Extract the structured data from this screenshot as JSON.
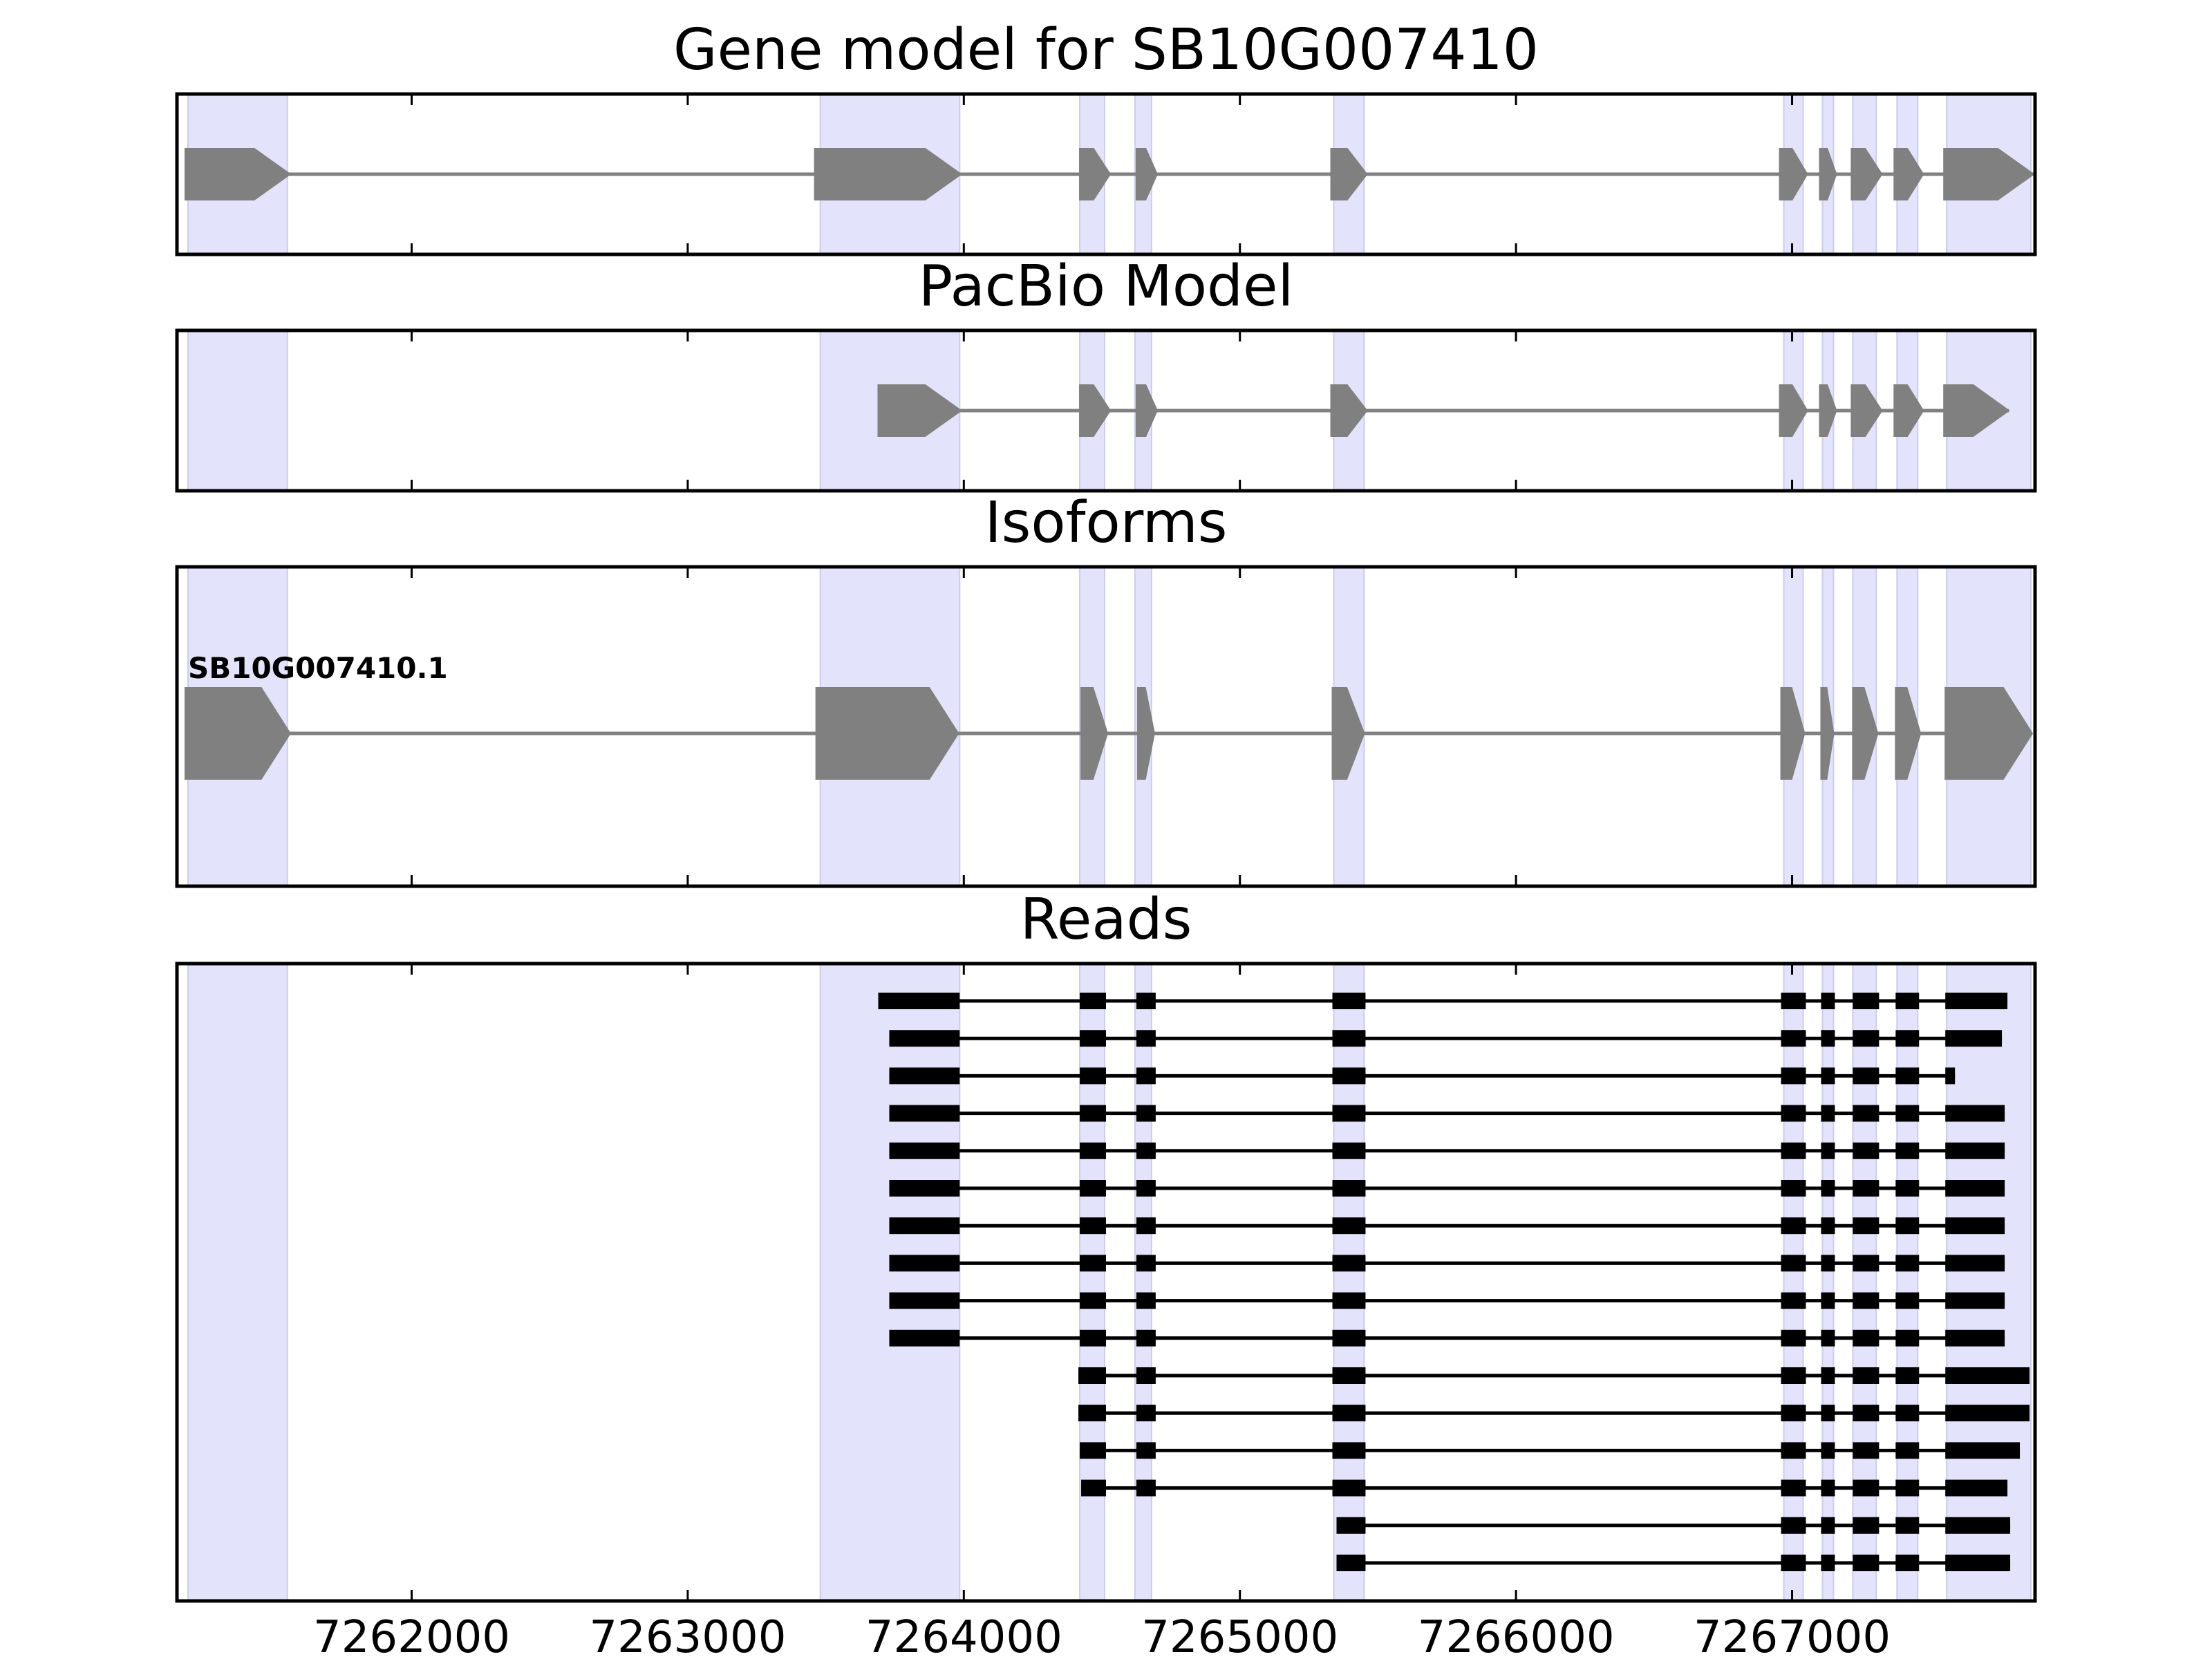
{
  "chart_data": {
    "type": "gene-model",
    "xlabel": "",
    "ylabel": "",
    "xlim": [
      7261150,
      7267880
    ],
    "xticks": [
      7262000,
      7263000,
      7264000,
      7265000,
      7266000,
      7267000
    ],
    "xtick_labels": [
      "7262000",
      "7263000",
      "7264000",
      "7265000",
      "7266000",
      "7267000"
    ],
    "strand": "+",
    "highlight_regions": [
      [
        7261190,
        7261550
      ],
      [
        7263480,
        7263985
      ],
      [
        7264420,
        7264510
      ],
      [
        7264620,
        7264680
      ],
      [
        7265340,
        7265450
      ],
      [
        7266970,
        7267040
      ],
      [
        7267110,
        7267150
      ],
      [
        7267220,
        7267305
      ],
      [
        7267380,
        7267455
      ],
      [
        7267560,
        7267865
      ]
    ],
    "panels": [
      {
        "id": "gene",
        "title": "Gene model for SB10G007410",
        "features": [
          {
            "exons": [
              [
                7261180,
                7261560
              ],
              [
                7263460,
                7263990
              ],
              [
                7264420,
                7264530
              ],
              [
                7264625,
                7264700
              ],
              [
                7265330,
                7265460
              ],
              [
                7266955,
                7267055
              ],
              [
                7267100,
                7267160
              ],
              [
                7267215,
                7267325
              ],
              [
                7267370,
                7267475
              ],
              [
                7267550,
                7267875
              ]
            ]
          }
        ]
      },
      {
        "id": "pacbio",
        "title": "PacBio Model",
        "features": [
          {
            "exons": [
              [
                7263690,
                7263990
              ],
              [
                7264420,
                7264530
              ],
              [
                7264625,
                7264700
              ],
              [
                7265330,
                7265460
              ],
              [
                7266955,
                7267055
              ],
              [
                7267100,
                7267160
              ],
              [
                7267215,
                7267325
              ],
              [
                7267370,
                7267475
              ],
              [
                7267550,
                7267785
              ]
            ]
          }
        ]
      },
      {
        "id": "isoforms",
        "title": "Isoforms",
        "features": [
          {
            "label": "SB10G007410.1",
            "exons": [
              [
                7261180,
                7261560
              ],
              [
                7263465,
                7263980
              ],
              [
                7264425,
                7264520
              ],
              [
                7264630,
                7264690
              ],
              [
                7265335,
                7265450
              ],
              [
                7266960,
                7267045
              ],
              [
                7267105,
                7267150
              ],
              [
                7267220,
                7267310
              ],
              [
                7267375,
                7267465
              ],
              [
                7267555,
                7267870
              ]
            ]
          }
        ]
      },
      {
        "id": "reads",
        "title": "Reads",
        "reads": [
          [
            [
              7263690,
              7263985
            ],
            [
              7264420,
              7264515
            ],
            [
              7264625,
              7264695
            ],
            [
              7265335,
              7265455
            ],
            [
              7266960,
              7267050
            ],
            [
              7267105,
              7267155
            ],
            [
              7267220,
              7267315
            ],
            [
              7267375,
              7267460
            ],
            [
              7267555,
              7267780
            ]
          ],
          [
            [
              7263730,
              7263985
            ],
            [
              7264420,
              7264515
            ],
            [
              7264625,
              7264695
            ],
            [
              7265335,
              7265455
            ],
            [
              7266960,
              7267050
            ],
            [
              7267105,
              7267155
            ],
            [
              7267220,
              7267315
            ],
            [
              7267375,
              7267460
            ],
            [
              7267555,
              7267760
            ]
          ],
          [
            [
              7263730,
              7263985
            ],
            [
              7264420,
              7264515
            ],
            [
              7264625,
              7264695
            ],
            [
              7265335,
              7265455
            ],
            [
              7266960,
              7267050
            ],
            [
              7267105,
              7267155
            ],
            [
              7267220,
              7267315
            ],
            [
              7267375,
              7267460
            ],
            [
              7267555,
              7267590
            ]
          ],
          [
            [
              7263730,
              7263985
            ],
            [
              7264420,
              7264515
            ],
            [
              7264625,
              7264695
            ],
            [
              7265335,
              7265455
            ],
            [
              7266960,
              7267050
            ],
            [
              7267105,
              7267155
            ],
            [
              7267220,
              7267315
            ],
            [
              7267375,
              7267460
            ],
            [
              7267555,
              7267770
            ]
          ],
          [
            [
              7263730,
              7263985
            ],
            [
              7264420,
              7264515
            ],
            [
              7264625,
              7264695
            ],
            [
              7265335,
              7265455
            ],
            [
              7266960,
              7267050
            ],
            [
              7267105,
              7267155
            ],
            [
              7267220,
              7267315
            ],
            [
              7267375,
              7267460
            ],
            [
              7267555,
              7267770
            ]
          ],
          [
            [
              7263730,
              7263985
            ],
            [
              7264420,
              7264515
            ],
            [
              7264625,
              7264695
            ],
            [
              7265335,
              7265455
            ],
            [
              7266960,
              7267050
            ],
            [
              7267105,
              7267155
            ],
            [
              7267220,
              7267315
            ],
            [
              7267375,
              7267460
            ],
            [
              7267555,
              7267770
            ]
          ],
          [
            [
              7263730,
              7263985
            ],
            [
              7264420,
              7264515
            ],
            [
              7264625,
              7264695
            ],
            [
              7265335,
              7265455
            ],
            [
              7266960,
              7267050
            ],
            [
              7267105,
              7267155
            ],
            [
              7267220,
              7267315
            ],
            [
              7267375,
              7267460
            ],
            [
              7267555,
              7267770
            ]
          ],
          [
            [
              7263730,
              7263985
            ],
            [
              7264420,
              7264515
            ],
            [
              7264625,
              7264695
            ],
            [
              7265335,
              7265455
            ],
            [
              7266960,
              7267050
            ],
            [
              7267105,
              7267155
            ],
            [
              7267220,
              7267315
            ],
            [
              7267375,
              7267460
            ],
            [
              7267555,
              7267770
            ]
          ],
          [
            [
              7263730,
              7263985
            ],
            [
              7264420,
              7264515
            ],
            [
              7264625,
              7264695
            ],
            [
              7265335,
              7265455
            ],
            [
              7266960,
              7267050
            ],
            [
              7267105,
              7267155
            ],
            [
              7267220,
              7267315
            ],
            [
              7267375,
              7267460
            ],
            [
              7267555,
              7267770
            ]
          ],
          [
            [
              7263730,
              7263985
            ],
            [
              7264420,
              7264515
            ],
            [
              7264625,
              7264695
            ],
            [
              7265335,
              7265455
            ],
            [
              7266960,
              7267050
            ],
            [
              7267105,
              7267155
            ],
            [
              7267220,
              7267315
            ],
            [
              7267375,
              7267460
            ],
            [
              7267555,
              7267770
            ]
          ],
          [
            [
              7264415,
              7264515
            ],
            [
              7264625,
              7264695
            ],
            [
              7265335,
              7265455
            ],
            [
              7266960,
              7267050
            ],
            [
              7267105,
              7267155
            ],
            [
              7267220,
              7267315
            ],
            [
              7267375,
              7267460
            ],
            [
              7267555,
              7267860
            ]
          ],
          [
            [
              7264415,
              7264515
            ],
            [
              7264625,
              7264695
            ],
            [
              7265335,
              7265455
            ],
            [
              7266960,
              7267050
            ],
            [
              7267105,
              7267155
            ],
            [
              7267220,
              7267315
            ],
            [
              7267375,
              7267460
            ],
            [
              7267555,
              7267860
            ]
          ],
          [
            [
              7264420,
              7264515
            ],
            [
              7264625,
              7264695
            ],
            [
              7265335,
              7265455
            ],
            [
              7266960,
              7267050
            ],
            [
              7267105,
              7267155
            ],
            [
              7267220,
              7267315
            ],
            [
              7267375,
              7267460
            ],
            [
              7267555,
              7267825
            ]
          ],
          [
            [
              7264425,
              7264515
            ],
            [
              7264625,
              7264695
            ],
            [
              7265335,
              7265455
            ],
            [
              7266960,
              7267050
            ],
            [
              7267105,
              7267155
            ],
            [
              7267220,
              7267315
            ],
            [
              7267375,
              7267460
            ],
            [
              7267555,
              7267780
            ]
          ],
          [
            [
              7265350,
              7265455
            ],
            [
              7266960,
              7267050
            ],
            [
              7267105,
              7267155
            ],
            [
              7267220,
              7267315
            ],
            [
              7267375,
              7267460
            ],
            [
              7267555,
              7267790
            ]
          ],
          [
            [
              7265350,
              7265455
            ],
            [
              7266960,
              7267050
            ],
            [
              7267105,
              7267155
            ],
            [
              7267220,
              7267315
            ],
            [
              7267375,
              7267460
            ],
            [
              7267555,
              7267790
            ]
          ]
        ]
      }
    ]
  },
  "colors": {
    "highlight": "#e3e3fb",
    "highlight_edge": "#ccccee",
    "feature": "#808080",
    "read": "#000000",
    "axis": "#000000"
  }
}
